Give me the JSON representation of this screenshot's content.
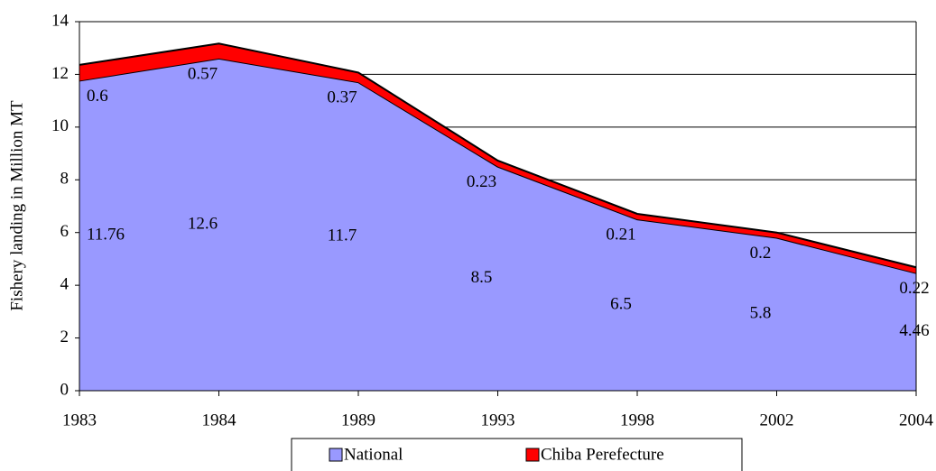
{
  "chart_data": {
    "type": "stacked-area",
    "y_label": "Fishery landing in Million MT",
    "categories": [
      "1983",
      "1984",
      "1989",
      "1993",
      "1998",
      "2002",
      "2004"
    ],
    "series": [
      {
        "name": "National",
        "color": "#9999ff",
        "values": [
          11.76,
          12.6,
          11.7,
          8.5,
          6.5,
          5.8,
          4.46
        ]
      },
      {
        "name": "Chiba Perefecture",
        "color": "#ff0000",
        "values": [
          0.6,
          0.57,
          0.37,
          0.23,
          0.21,
          0.2,
          0.22
        ]
      }
    ],
    "ylim": [
      0,
      14
    ],
    "yticks": [
      0,
      2,
      4,
      6,
      8,
      10,
      12,
      14
    ],
    "grid": true,
    "legend": "bottom"
  }
}
